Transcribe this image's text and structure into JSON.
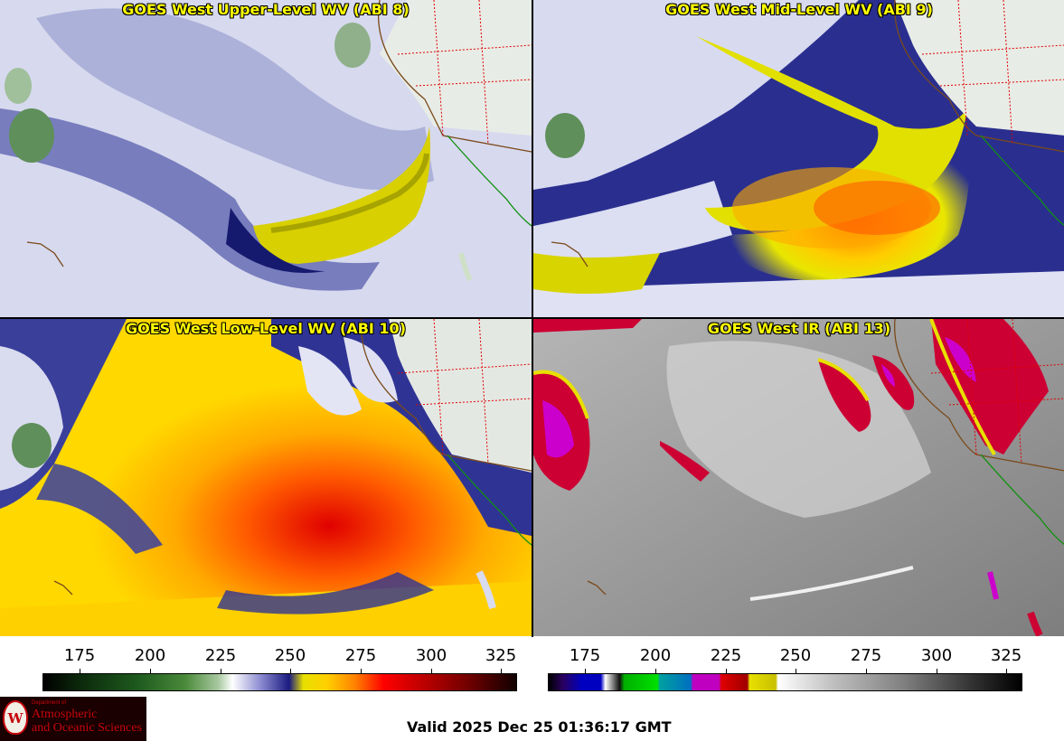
{
  "panels": [
    {
      "id": "upper",
      "title": "GOES West Upper-Level WV (ABI 8)"
    },
    {
      "id": "mid",
      "title": "GOES West Mid-Level WV (ABI 9)"
    },
    {
      "id": "low",
      "title": "GOES West Low-Level WV (ABI 10)"
    },
    {
      "id": "ir",
      "title": "GOES West IR (ABI 13)"
    }
  ],
  "colorbar_wv": {
    "ticks": [
      "175",
      "200",
      "225",
      "250",
      "275",
      "300",
      "325"
    ]
  },
  "colorbar_ir": {
    "ticks": [
      "175",
      "200",
      "225",
      "250",
      "275",
      "300",
      "325"
    ]
  },
  "logo": {
    "small": "Department of",
    "line1": "Atmospheric",
    "line2": "and Oceanic Sciences",
    "seal_text": "W"
  },
  "valid_time": "Valid 2025 Dec 25 01:36:17 GMT",
  "colors": {
    "title_text": "#ffff00",
    "wv_dry": "#ffd000",
    "wv_moist": "#ffffff",
    "ir_cold": "#cc0033"
  }
}
